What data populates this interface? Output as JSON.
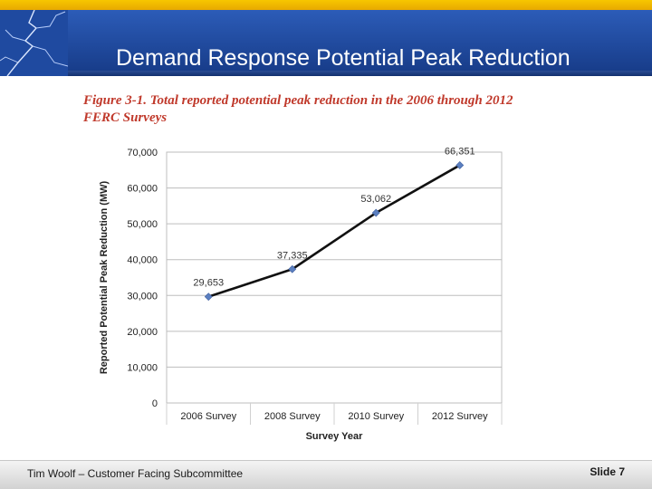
{
  "slide": {
    "title": "Demand Response Potential Peak Reduction",
    "figure_caption_line1": "Figure 3-1. Total reported potential peak reduction in the 2006 through 2012",
    "figure_caption_line2": "FERC Surveys",
    "footer_left": "Tim Woolf – Customer Facing Subcommittee",
    "footer_right": "Slide 7"
  },
  "colors": {
    "accent_yellow": "#f2b800",
    "title_blue": "#1f4aa0",
    "line": "#111111",
    "marker": "#5b7fc0",
    "caption_red": "#c0392b"
  },
  "chart_data": {
    "type": "line",
    "title": "Figure 3-1. Total reported potential peak reduction in the 2006 through 2012 FERC Surveys",
    "xlabel": "Survey Year",
    "ylabel": "Reported Potential Peak Reduction (MW)",
    "categories": [
      "2006 Survey",
      "2008 Survey",
      "2010 Survey",
      "2012 Survey"
    ],
    "values": [
      29653,
      37335,
      53062,
      66351
    ],
    "data_labels": [
      "29,653",
      "37,335",
      "53,062",
      "66,351"
    ],
    "ylim": [
      0,
      70000
    ],
    "yticks": [
      0,
      10000,
      20000,
      30000,
      40000,
      50000,
      60000,
      70000
    ],
    "ytick_labels": [
      "0",
      "10,000",
      "20,000",
      "30,000",
      "40,000",
      "50,000",
      "60,000",
      "70,000"
    ],
    "grid": true
  }
}
